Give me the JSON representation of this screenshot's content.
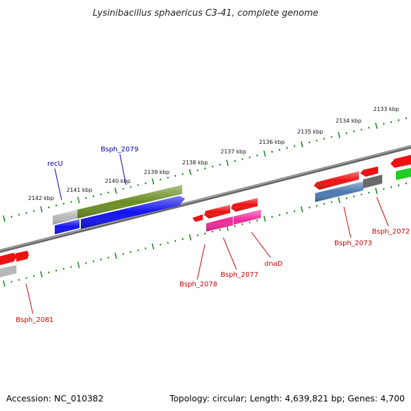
{
  "title": "Lysinibacillus sphaericus C3-41, complete genome",
  "footer": {
    "accession": "Accession: NC_010382",
    "summary": "Topology: circular; Length: 4,639,821 bp; Genes: 4,700"
  },
  "ticks": [
    "2133 kbp",
    "2134 kbp",
    "2135 kbp",
    "2136 kbp",
    "2137 kbp",
    "2138 kbp",
    "2139 kbp",
    "2140 kbp",
    "2141 kbp",
    "2142 kbp"
  ],
  "labels": {
    "recU": "recU",
    "bsph2079": "Bsph_2079",
    "bsph2078": "Bsph_2078",
    "bsph2077": "Bsph_2077",
    "dnaD": "dnaD",
    "bsph2073": "Bsph_2073",
    "bsph2072": "Bsph_2072",
    "bsph2081": "Bsph_2081"
  },
  "colors": {
    "backbone": "#8a8a8a",
    "tick": "#1e8a1e",
    "red": "#ee1111",
    "blue": "#1111ee",
    "olive": "#6b8e23",
    "pink": "#ee2a9a",
    "steel": "#4a7ab0",
    "gray": "#b8b8b8",
    "darkgray": "#6a6a6a",
    "green": "#22cc22",
    "labelBlue": "#0000aa",
    "labelRed": "#cc0000"
  }
}
